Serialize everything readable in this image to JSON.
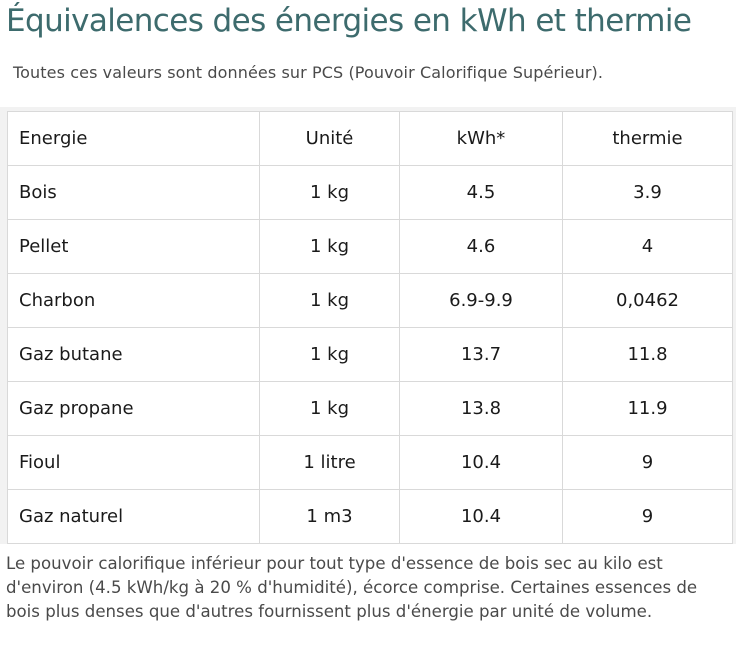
{
  "page": {
    "title": "Équivalences des énergies en kWh et thermie",
    "subtitle": "Toutes ces valeurs sont données sur PCS (Pouvoir Calorifique Supérieur)."
  },
  "table": {
    "headers": [
      "Energie",
      "Unité",
      "kWh*",
      "thermie"
    ],
    "rows": [
      [
        "Bois",
        "1 kg",
        "4.5",
        "3.9"
      ],
      [
        "Pellet",
        "1 kg",
        "4.6",
        "4"
      ],
      [
        "Charbon",
        "1 kg",
        "6.9-9.9",
        "0,0462"
      ],
      [
        "Gaz butane",
        "1 kg",
        "13.7",
        "11.8"
      ],
      [
        "Gaz propane",
        "1 kg",
        "13.8",
        "11.9"
      ],
      [
        "Fioul",
        "1 litre",
        "10.4",
        "9"
      ],
      [
        "Gaz naturel",
        "1 m3",
        "10.4",
        "9"
      ]
    ]
  },
  "note": "Le pouvoir calorifique inférieur pour tout type d'essence de bois sec au kilo est d'environ (4.5 kWh/kg à 20 % d'humidité), écorce comprise. Certaines essences de bois plus denses que d'autres fournissent plus d'énergie par unité de volume.",
  "colors": {
    "title": "#3d6b6d",
    "text": "#4a4a4a",
    "table_text": "#1a1a1a",
    "border": "#d9d9d9",
    "band": "#f2f2f2"
  }
}
